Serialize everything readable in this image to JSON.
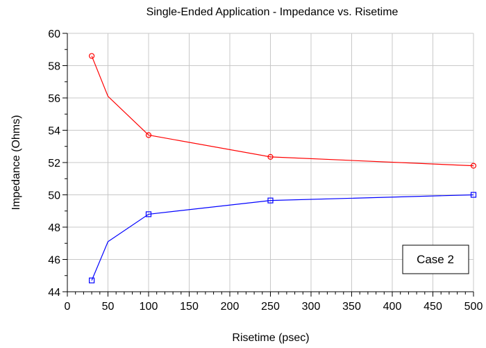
{
  "chart_data": {
    "type": "line",
    "title": "Single-Ended Application - Impedance vs. Risetime",
    "xlabel": "Risetime (psec)",
    "ylabel": "Impedance (Ohms)",
    "xlim": [
      0,
      500
    ],
    "ylim": [
      44,
      60
    ],
    "xticks": [
      0,
      50,
      100,
      150,
      200,
      250,
      300,
      350,
      400,
      450,
      500
    ],
    "yticks": [
      44,
      46,
      48,
      50,
      52,
      54,
      56,
      58,
      60
    ],
    "grid": true,
    "annotation": "Case 2",
    "annotation_position": "bottom-right",
    "colors": {
      "background": "#ffffff",
      "grid": "#c8c8c8",
      "axis": "#000000",
      "series_red": "#ff0000",
      "series_blue": "#0000ff"
    },
    "series": [
      {
        "color": "#ff0000",
        "marker": "circle",
        "x": [
          30,
          50,
          100,
          250,
          500
        ],
        "values": [
          58.6,
          56.1,
          53.7,
          52.35,
          51.8
        ],
        "marker_indices": [
          0,
          2,
          3,
          4
        ]
      },
      {
        "color": "#0000ff",
        "marker": "square",
        "x": [
          30,
          50,
          100,
          250,
          500
        ],
        "values": [
          44.7,
          47.1,
          48.8,
          49.65,
          50.0
        ],
        "marker_indices": [
          0,
          2,
          3,
          4
        ]
      }
    ]
  }
}
